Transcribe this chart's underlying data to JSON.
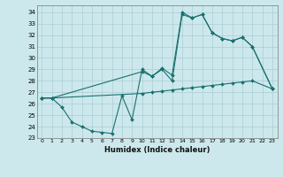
{
  "xlabel": "Humidex (Indice chaleur)",
  "bg_color": "#cce8ec",
  "grid_color": "#aacdd4",
  "line_color": "#1a7070",
  "xlim": [
    -0.5,
    23.5
  ],
  "ylim": [
    23,
    34.6
  ],
  "xticks": [
    0,
    1,
    2,
    3,
    4,
    5,
    6,
    7,
    8,
    9,
    10,
    11,
    12,
    13,
    14,
    15,
    16,
    17,
    18,
    19,
    20,
    21,
    22,
    23
  ],
  "yticks": [
    23,
    24,
    25,
    26,
    27,
    28,
    29,
    30,
    31,
    32,
    33,
    34
  ],
  "series": [
    {
      "x": [
        0,
        1,
        2,
        3,
        4,
        5,
        6,
        7,
        8,
        9,
        10,
        11,
        12,
        13,
        14,
        15,
        16,
        17,
        18,
        19,
        20,
        21,
        23
      ],
      "y": [
        26.5,
        26.5,
        25.7,
        24.4,
        24.0,
        23.6,
        23.5,
        23.4,
        26.7,
        24.6,
        29.0,
        28.4,
        29.0,
        28.0,
        33.8,
        33.5,
        33.8,
        32.2,
        31.7,
        31.5,
        31.8,
        31.0,
        27.3
      ]
    },
    {
      "x": [
        0,
        1,
        10,
        11,
        12,
        13,
        14,
        15,
        16,
        17,
        18,
        19,
        20,
        21,
        23
      ],
      "y": [
        26.5,
        26.5,
        26.9,
        27.0,
        27.1,
        27.2,
        27.3,
        27.4,
        27.5,
        27.6,
        27.7,
        27.8,
        27.9,
        28.0,
        27.3
      ]
    },
    {
      "x": [
        0,
        1,
        10,
        11,
        12,
        13,
        14,
        15,
        16,
        17,
        18,
        19,
        20,
        21,
        23
      ],
      "y": [
        26.5,
        26.5,
        28.8,
        28.4,
        29.1,
        28.5,
        34.0,
        33.5,
        33.8,
        32.2,
        31.7,
        31.5,
        31.8,
        31.0,
        27.3
      ]
    }
  ]
}
